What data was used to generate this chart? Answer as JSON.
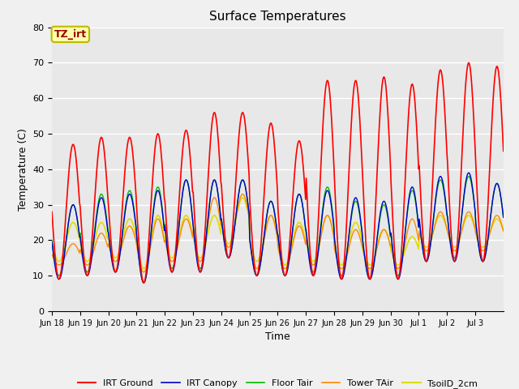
{
  "title": "Surface Temperatures",
  "xlabel": "Time",
  "ylabel": "Temperature (C)",
  "ylim": [
    0,
    80
  ],
  "yticks": [
    0,
    10,
    20,
    30,
    40,
    50,
    60,
    70,
    80
  ],
  "num_days": 16,
  "series": {
    "IRT Ground": {
      "color": "#ff0000",
      "lw": 1.2
    },
    "IRT Canopy": {
      "color": "#0000cc",
      "lw": 1.0
    },
    "Floor Tair": {
      "color": "#00bb00",
      "lw": 1.0
    },
    "Tower TAir": {
      "color": "#ff8800",
      "lw": 1.0
    },
    "TsoilD_2cm": {
      "color": "#dddd00",
      "lw": 1.2
    }
  },
  "irt_ground_peaks": [
    47,
    49,
    49,
    50,
    51,
    56,
    56,
    53,
    48,
    65,
    65,
    66,
    64,
    68,
    70,
    69
  ],
  "irt_ground_mins": [
    9,
    10,
    11,
    8,
    11,
    11,
    15,
    10,
    10,
    10,
    9,
    9,
    9,
    14,
    14,
    14
  ],
  "canopy_peaks": [
    30,
    32,
    33,
    34,
    37,
    37,
    37,
    31,
    33,
    34,
    32,
    31,
    35,
    38,
    39,
    36
  ],
  "canopy_mins": [
    9,
    10,
    11,
    8,
    11,
    11,
    15,
    10,
    10,
    10,
    9,
    9,
    9,
    14,
    14,
    14
  ],
  "floor_peaks": [
    30,
    33,
    34,
    35,
    37,
    37,
    37,
    31,
    33,
    35,
    31,
    30,
    34,
    37,
    38,
    36
  ],
  "floor_mins": [
    10,
    11,
    11,
    8,
    12,
    12,
    15,
    10,
    10,
    11,
    10,
    9,
    10,
    14,
    15,
    14
  ],
  "tower_peaks": [
    19,
    22,
    24,
    26,
    26,
    32,
    33,
    27,
    24,
    27,
    23,
    23,
    26,
    28,
    28,
    27
  ],
  "tower_mins": [
    13,
    13,
    14,
    11,
    14,
    14,
    18,
    12,
    12,
    13,
    12,
    12,
    12,
    17,
    17,
    17
  ],
  "soil_peaks": [
    25,
    25,
    26,
    27,
    27,
    27,
    32,
    27,
    25,
    27,
    25,
    23,
    21,
    27,
    27,
    26
  ],
  "soil_mins": [
    14,
    14,
    15,
    12,
    15,
    15,
    19,
    14,
    13,
    14,
    13,
    13,
    13,
    18,
    18,
    18
  ],
  "annotation_text": "TZ_irt",
  "annotation_color": "#990000",
  "annotation_bg": "#ffffaa",
  "annotation_border": "#bbbb00",
  "plot_bg_color": "#e8e8e8",
  "fig_bg_color": "#f0f0f0",
  "grid_color": "#ffffff",
  "xtick_labels": [
    "Jun 18",
    "Jun 19",
    "Jun 20",
    "Jun 21",
    "Jun 22",
    "Jun 23",
    "Jun 24",
    "Jun 25",
    "Jun 26",
    "Jun 27",
    "Jun 28",
    "Jun 29",
    "Jun 30",
    "Jul 1",
    "Jul 2",
    "Jul 3"
  ],
  "legend_labels": [
    "IRT Ground",
    "IRT Canopy",
    "Floor Tair",
    "Tower TAir",
    "TsoilD_2cm"
  ]
}
